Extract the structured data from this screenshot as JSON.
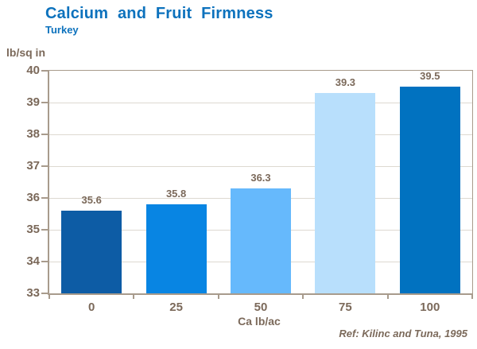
{
  "header": {
    "title": "Calcium and Fruit Firmness",
    "subtitle": "Turkey"
  },
  "chart_data": {
    "type": "bar",
    "title": "Calcium and Fruit Firmness",
    "subtitle": "Turkey",
    "categories": [
      "0",
      "25",
      "50",
      "75",
      "100"
    ],
    "values": [
      35.6,
      35.8,
      36.3,
      39.3,
      39.5
    ],
    "value_labels": [
      "35.6",
      "35.8",
      "36.3",
      "39.3",
      "39.5"
    ],
    "xlabel": "Ca lb/ac",
    "ylabel": "lb/sq in",
    "ylim": [
      33,
      40
    ],
    "yticks": [
      33,
      34,
      35,
      36,
      37,
      38,
      39,
      40
    ],
    "grid": true,
    "legend": "none",
    "bar_colors": [
      "#0d5ca5",
      "#0885e3",
      "#66b9fc",
      "#b8dffc",
      "#0172c0"
    ],
    "title_color": "#0d72bd",
    "text_color": "#7b695a",
    "axis_color": "#a89b8c",
    "grid_color": "#ddd9d1"
  },
  "footer": {
    "ref": "Ref: Kilinc and Tuna, 1995"
  }
}
